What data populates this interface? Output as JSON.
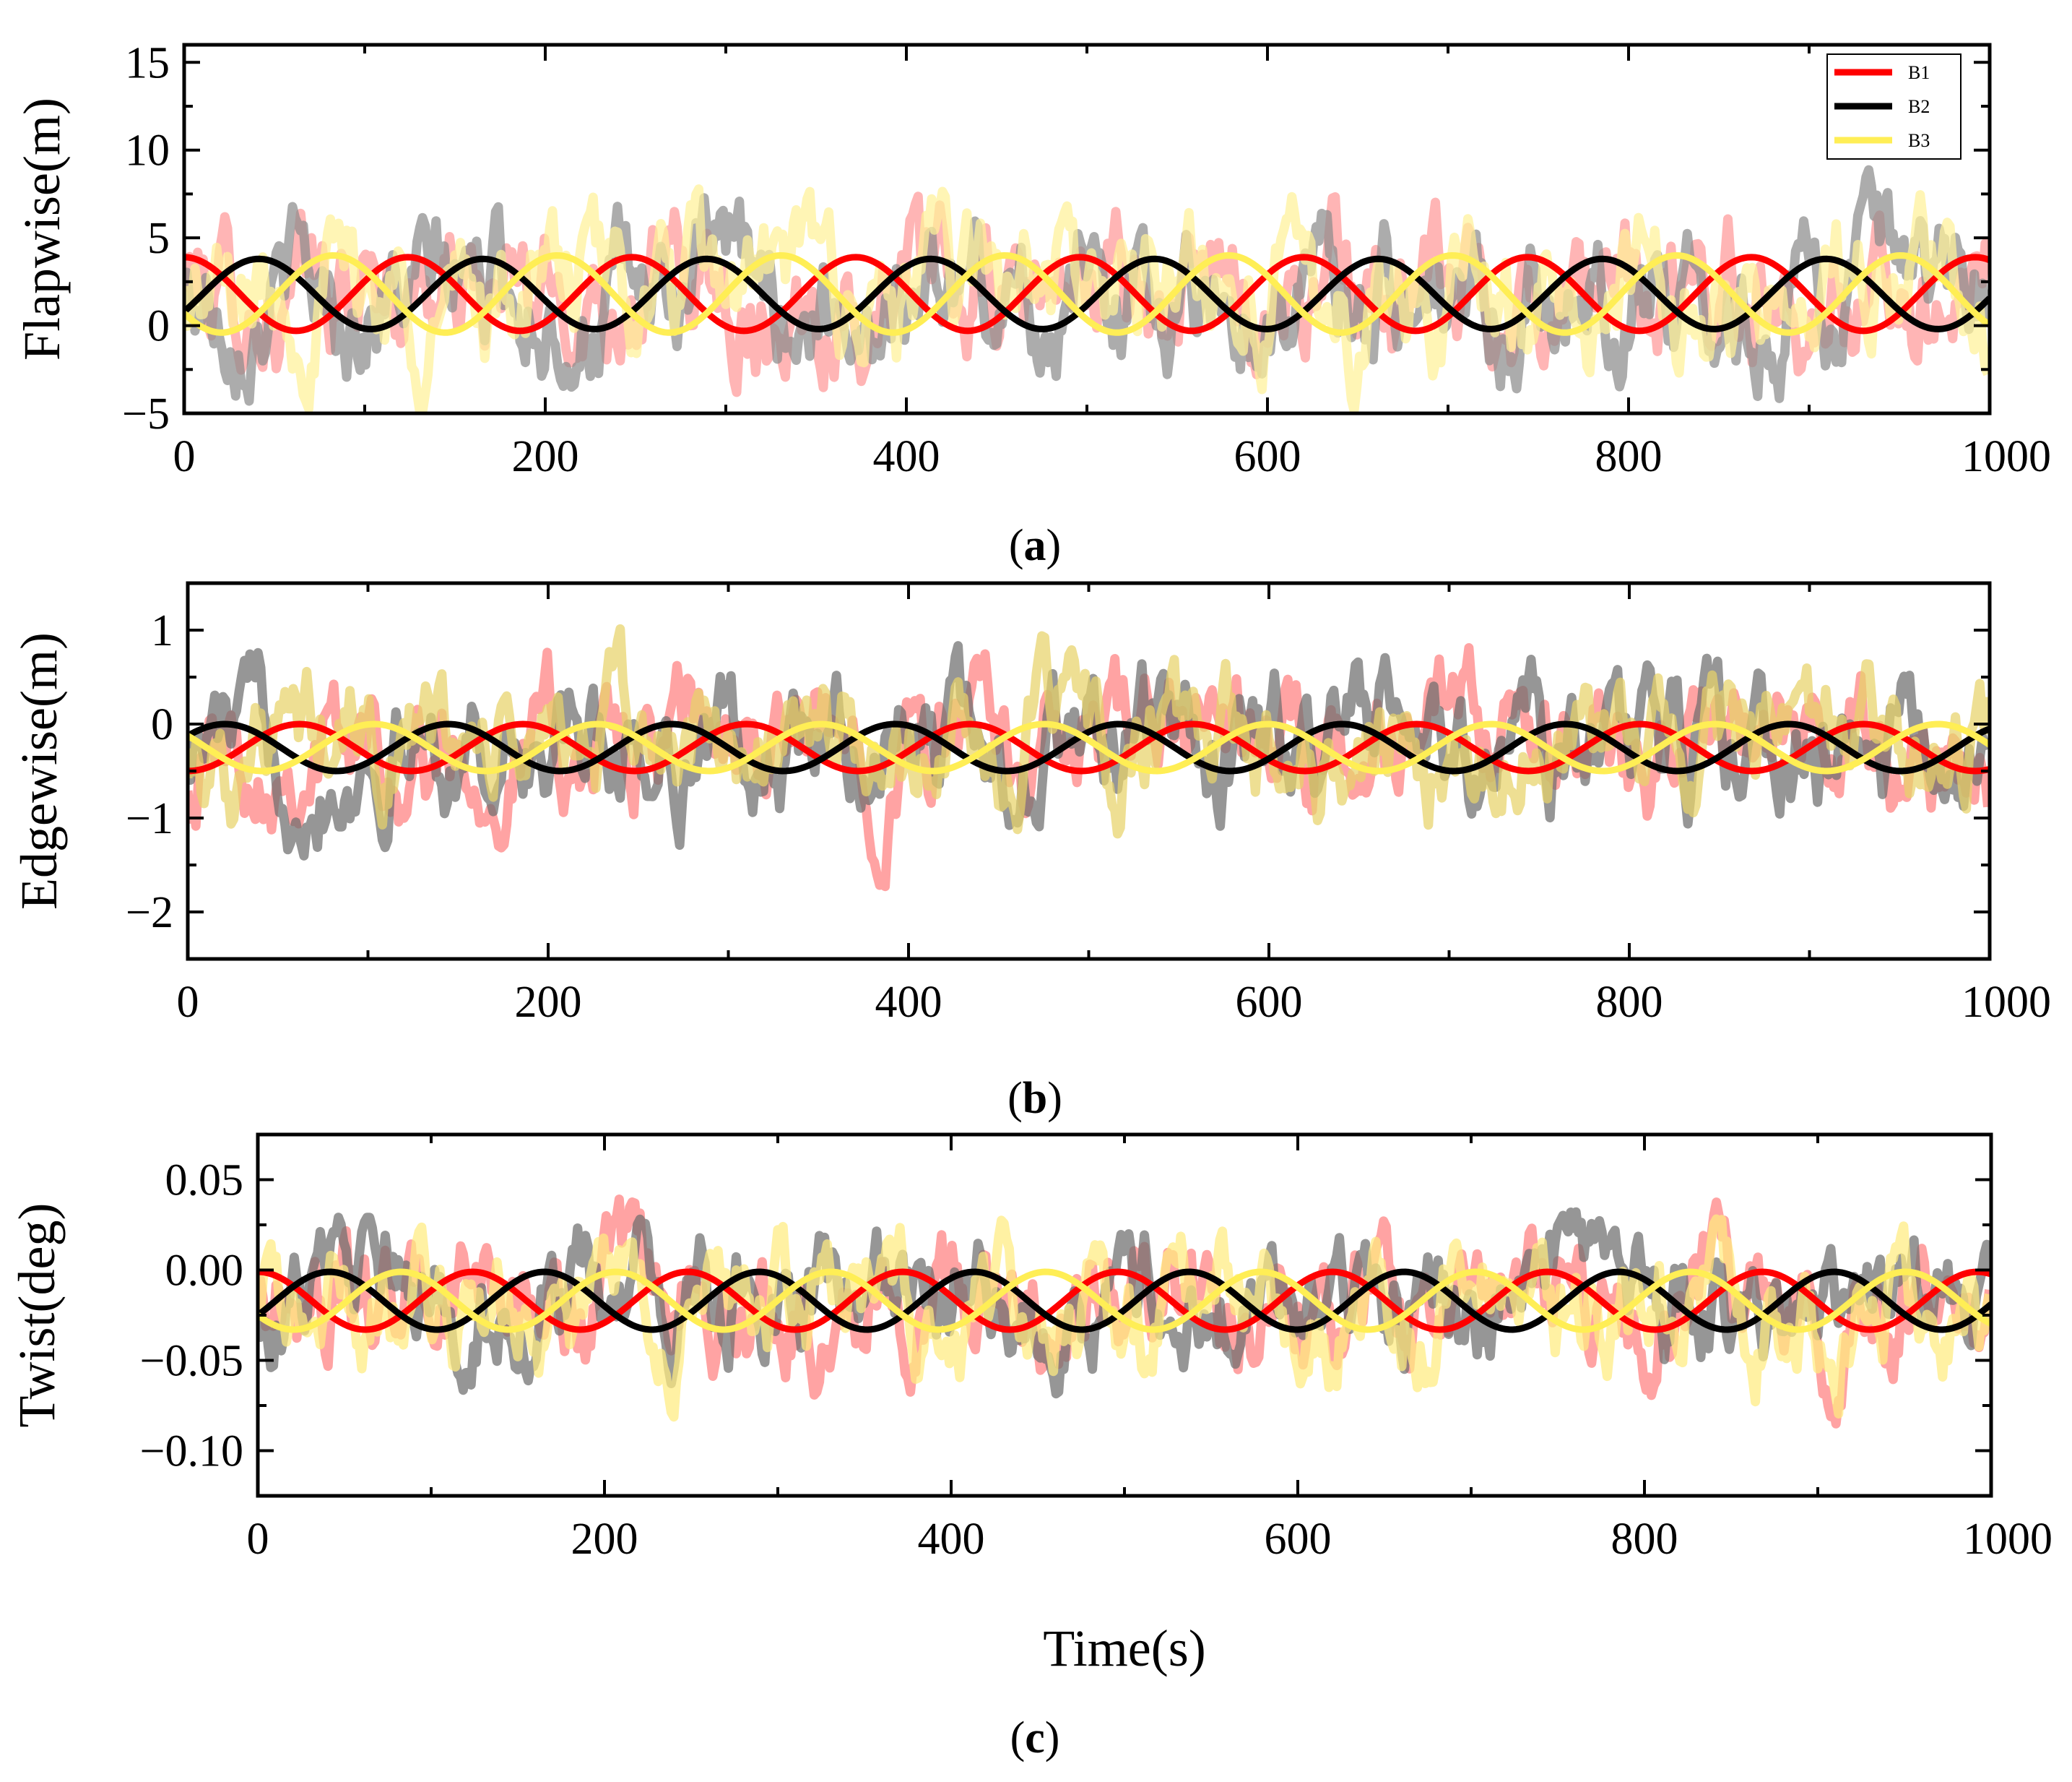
{
  "chart_data": [
    {
      "type": "line",
      "panel": "a",
      "caption_letter": "a",
      "xlabel": "",
      "ylabel": "Flapwise(m)",
      "xlim": [
        0,
        1000
      ],
      "ylim": [
        -5,
        16
      ],
      "xticks": [
        0,
        200,
        400,
        600,
        800,
        1000
      ],
      "xtick_labels": [
        "0",
        "200",
        "400",
        "600",
        "800",
        "1000"
      ],
      "yticks": [
        -5,
        0,
        5,
        10,
        15
      ],
      "ytick_labels": [
        "−5",
        "0",
        "5",
        "10",
        "15"
      ],
      "legend_placement": "top-right",
      "legend": [
        "B1",
        "B2",
        "B3"
      ],
      "series": [
        {
          "name": "B1",
          "color": "#ff0000",
          "kind": "sinusoid",
          "mean": 1.8,
          "amplitude": 2.1,
          "period": 124,
          "phase_deg": 90,
          "noise_color": "#ff9999",
          "noise_std": 2.6
        },
        {
          "name": "B2",
          "color": "#000000",
          "kind": "sinusoid",
          "mean": 1.8,
          "amplitude": 2.0,
          "period": 124,
          "phase_deg": -30,
          "noise_color": "#8c8c8c",
          "noise_std": 2.6
        },
        {
          "name": "B3",
          "color": "#ffee55",
          "kind": "sinusoid",
          "mean": 1.8,
          "amplitude": 2.2,
          "period": 124,
          "phase_deg": 210,
          "noise_color": "#fff199",
          "noise_std": 2.6
        }
      ]
    },
    {
      "type": "line",
      "panel": "b",
      "caption_letter": "b",
      "xlabel": "",
      "ylabel": "Edgewise(m)",
      "xlim": [
        0,
        1000
      ],
      "ylim": [
        -2.5,
        1.5
      ],
      "xticks": [
        0,
        200,
        400,
        600,
        800,
        1000
      ],
      "xtick_labels": [
        "0",
        "200",
        "400",
        "600",
        "800",
        "1000"
      ],
      "yticks": [
        -2,
        -1,
        0,
        1
      ],
      "ytick_labels": [
        "−2",
        "−1",
        "0",
        "1"
      ],
      "series": [
        {
          "name": "B1",
          "color": "#ff0000",
          "kind": "sinusoid",
          "mean": -0.25,
          "amplitude": 0.25,
          "period": 124,
          "phase_deg": 270,
          "noise_color": "#ff8080",
          "noise_std": 0.45
        },
        {
          "name": "B2",
          "color": "#000000",
          "kind": "sinusoid",
          "mean": -0.25,
          "amplitude": 0.25,
          "period": 124,
          "phase_deg": 30,
          "noise_color": "#6e6e6e",
          "noise_std": 0.45
        },
        {
          "name": "B3",
          "color": "#ffee55",
          "kind": "sinusoid",
          "mean": -0.25,
          "amplitude": 0.25,
          "period": 124,
          "phase_deg": 150,
          "noise_color": "#e8d36a",
          "noise_std": 0.45
        }
      ]
    },
    {
      "type": "line",
      "panel": "c",
      "caption_letter": "c",
      "xlabel": "Time(s)",
      "ylabel": "Twist(deg)",
      "xlim": [
        0,
        1000
      ],
      "ylim": [
        -0.125,
        0.075
      ],
      "xticks": [
        0,
        200,
        400,
        600,
        800,
        1000
      ],
      "xtick_labels": [
        "0",
        "200",
        "400",
        "600",
        "800",
        "1000"
      ],
      "yticks": [
        -0.1,
        -0.05,
        0.0,
        0.05
      ],
      "ytick_labels": [
        "−0.10",
        "−0.05",
        "0.00",
        "0.05"
      ],
      "series": [
        {
          "name": "B1",
          "color": "#ff0000",
          "kind": "sinusoid",
          "mean": -0.017,
          "amplitude": 0.016,
          "period": 124,
          "phase_deg": 90,
          "noise_color": "#ff8080",
          "noise_std": 0.022
        },
        {
          "name": "B2",
          "color": "#000000",
          "kind": "sinusoid",
          "mean": -0.017,
          "amplitude": 0.016,
          "period": 124,
          "phase_deg": -30,
          "noise_color": "#6e6e6e",
          "noise_std": 0.022
        },
        {
          "name": "B3",
          "color": "#ffee55",
          "kind": "sinusoid",
          "mean": -0.017,
          "amplitude": 0.016,
          "period": 124,
          "phase_deg": 210,
          "noise_color": "#ffec80",
          "noise_std": 0.022
        }
      ]
    }
  ]
}
